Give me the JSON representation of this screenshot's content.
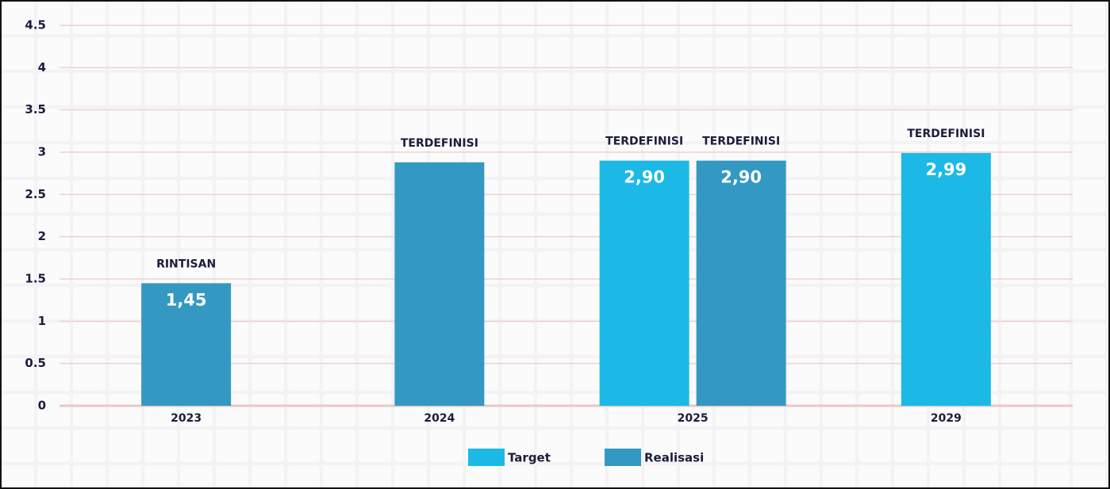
{
  "chart_data": {
    "type": "bar",
    "categories": [
      "2023",
      "2024",
      "2025",
      "2029"
    ],
    "series": [
      {
        "name": "Target",
        "color": "#1cb9e6",
        "values": [
          null,
          null,
          2.9,
          2.99
        ],
        "value_labels": [
          null,
          null,
          "2,90",
          "2,99"
        ],
        "annotations": [
          null,
          null,
          "TERDEFINISI",
          "TERDEFINISI"
        ]
      },
      {
        "name": "Realisasi",
        "color": "#3399c3",
        "values": [
          1.45,
          2.88,
          2.9,
          null
        ],
        "value_labels": [
          "1,45",
          null,
          "2,90",
          null
        ],
        "annotations": [
          "RINTISAN",
          "TERDEFINISI",
          "TERDEFINISI",
          null
        ]
      }
    ],
    "ylim": [
      0,
      4.5
    ],
    "yticks": [
      0,
      0.5,
      1,
      1.5,
      2,
      2.5,
      3,
      3.5,
      4,
      4.5
    ],
    "grid": true,
    "legend": "bottom"
  }
}
